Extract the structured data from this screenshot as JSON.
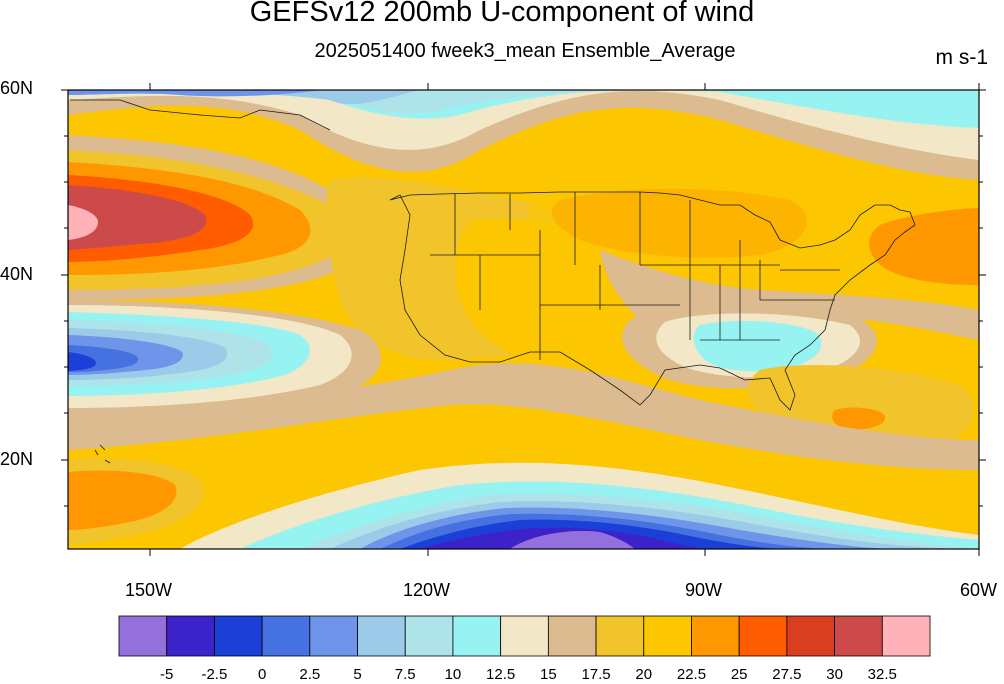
{
  "title": "GEFSv12 200mb U-component of wind",
  "subtitle": "2025051400 fweek3_mean Ensemble_Average",
  "units": "m s-1",
  "map": {
    "lat_labels": [
      "60N",
      "40N",
      "20N"
    ],
    "lon_labels": [
      "150W",
      "120W",
      "90W",
      "60W"
    ]
  },
  "colorbar": {
    "colors": [
      "#9370db",
      "#3b22c9",
      "#1c3fd8",
      "#4671e0",
      "#6f95ea",
      "#9ccbe9",
      "#aee3ea",
      "#97f3f1",
      "#f2e7c6",
      "#dbbb8f",
      "#f2c42c",
      "#fcc600",
      "#ff9800",
      "#ff5c00",
      "#d93e1e",
      "#cc4a4a",
      "#ffb3b8"
    ],
    "labels": [
      "-5",
      "-2.5",
      "0",
      "2.5",
      "5",
      "7.5",
      "10",
      "12.5",
      "15",
      "17.5",
      "20",
      "22.5",
      "25",
      "27.5",
      "30",
      "32.5"
    ]
  }
}
